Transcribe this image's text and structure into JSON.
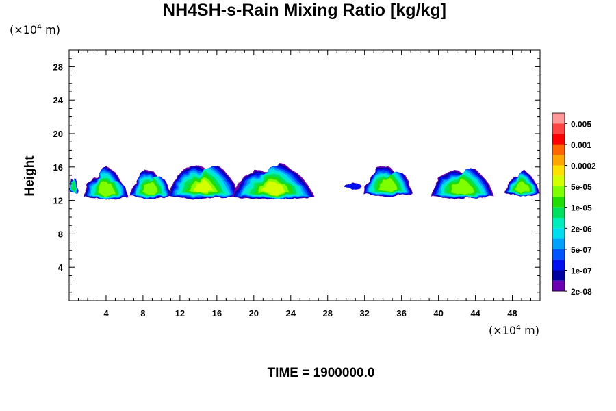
{
  "chart_data": {
    "type": "heatmap",
    "title": "NH4SH-s-Rain Mixing Ratio [kg/kg]",
    "ylabel": "Height",
    "x_unit_label": "(×10",
    "x_unit_exp": "4",
    "x_unit_suffix": " m)",
    "y_unit_label": "(×10",
    "y_unit_exp": "4",
    "y_unit_suffix": " m)",
    "xlim": [
      0,
      51
    ],
    "ylim": [
      0,
      30
    ],
    "x_ticks": [
      "4",
      "8",
      "12",
      "16",
      "20",
      "24",
      "28",
      "32",
      "36",
      "40",
      "44",
      "48"
    ],
    "x_tick_values": [
      4,
      8,
      12,
      16,
      20,
      24,
      28,
      32,
      36,
      40,
      44,
      48
    ],
    "y_ticks": [
      "4",
      "8",
      "12",
      "16",
      "20",
      "24",
      "28"
    ],
    "y_tick_values": [
      4,
      8,
      12,
      16,
      20,
      24,
      28
    ],
    "colorbar": {
      "labels": [
        "0.005",
        "0.001",
        "0.0002",
        "5e-05",
        "1e-05",
        "2e-06",
        "5e-07",
        "1e-07",
        "2e-08"
      ],
      "colors": [
        "#ff9999",
        "#ff4444",
        "#ff0000",
        "#ff6600",
        "#ffa500",
        "#ffe000",
        "#d4ff00",
        "#7fff00",
        "#22dd00",
        "#00e060",
        "#00eebb",
        "#00ddee",
        "#00a0ff",
        "#0055ff",
        "#0010ee",
        "#0000a0",
        "#6a00b0"
      ]
    },
    "clouds": [
      {
        "x0": 0.0,
        "x1": 1.0,
        "ybot": 13.2,
        "ytop": 14.6,
        "core": 0.3
      },
      {
        "x0": 1.6,
        "x1": 6.4,
        "ybot": 12.4,
        "ytop": 15.7,
        "core": 0.55
      },
      {
        "x0": 6.6,
        "x1": 11.0,
        "ybot": 12.5,
        "ytop": 15.5,
        "core": 0.55
      },
      {
        "x0": 10.6,
        "x1": 18.4,
        "ybot": 12.5,
        "ytop": 16.3,
        "core": 0.7
      },
      {
        "x0": 17.6,
        "x1": 26.6,
        "ybot": 12.4,
        "ytop": 16.1,
        "core": 0.75
      },
      {
        "x0": 29.8,
        "x1": 31.8,
        "ybot": 13.6,
        "ytop": 14.1,
        "core": 0.0
      },
      {
        "x0": 31.8,
        "x1": 37.2,
        "ybot": 12.8,
        "ytop": 16.0,
        "core": 0.5
      },
      {
        "x0": 39.2,
        "x1": 46.0,
        "ybot": 12.5,
        "ytop": 15.8,
        "core": 0.55
      },
      {
        "x0": 47.2,
        "x1": 51.0,
        "ybot": 12.8,
        "ytop": 15.3,
        "core": 0.5
      }
    ],
    "time_label": "TIME = 1900000.0"
  }
}
